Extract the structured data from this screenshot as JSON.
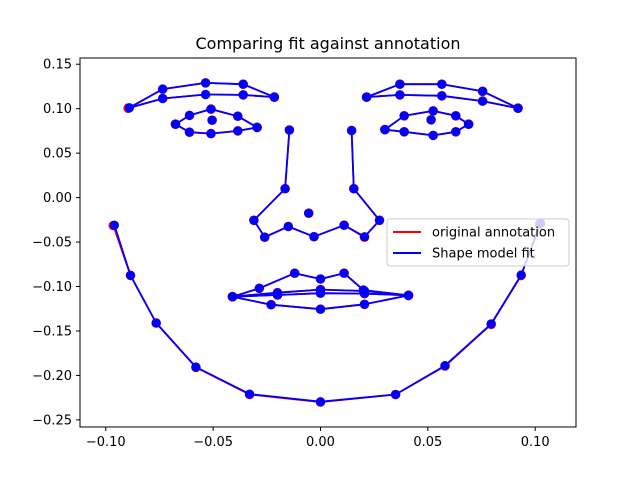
{
  "chart_data": {
    "type": "scatter",
    "title": "Comparing fit against annotation",
    "xlabel": "",
    "ylabel": "",
    "xlim": [
      -0.112,
      0.119
    ],
    "ylim": [
      -0.258,
      0.157
    ],
    "x_ticks": [
      -0.1,
      -0.05,
      0.0,
      0.05,
      0.1
    ],
    "x_tick_labels": [
      "−0.10",
      "−0.05",
      "0.00",
      "0.05",
      "0.10"
    ],
    "y_ticks": [
      -0.25,
      -0.2,
      -0.15,
      -0.1,
      -0.05,
      0.0,
      0.05,
      0.1,
      0.15
    ],
    "y_tick_labels": [
      "−0.25",
      "−0.20",
      "−0.15",
      "−0.10",
      "−0.05",
      "0.00",
      "0.05",
      "0.10",
      "0.15"
    ],
    "grid": false,
    "legend": {
      "placement": "center-right",
      "entries": [
        {
          "label": "original annotation",
          "color": "#ff0000"
        },
        {
          "label": "Shape model fit",
          "color": "#0000ff"
        }
      ]
    },
    "colors": {
      "annotation": "#ff0000",
      "fit": "#0000ff",
      "marker_overlap": "#2222ff"
    },
    "series": [
      {
        "name": "original annotation",
        "paths": [
          [
            [
              -0.0965,
              -0.0315
            ],
            [
              -0.0885,
              -0.0875
            ],
            [
              -0.0765,
              -0.141
            ],
            [
              -0.058,
              -0.191
            ],
            [
              -0.033,
              -0.2215
            ],
            [
              0.0,
              -0.23
            ],
            [
              0.035,
              -0.2215
            ],
            [
              0.058,
              -0.1895
            ],
            [
              0.0795,
              -0.1425
            ],
            [
              0.0935,
              -0.0875
            ],
            [
              0.102,
              -0.03
            ]
          ],
          [
            [
              -0.0895,
              0.1005
            ],
            [
              -0.0735,
              0.122
            ],
            [
              -0.0535,
              0.129
            ],
            [
              -0.036,
              0.1275
            ],
            [
              -0.0215,
              0.113
            ]
          ],
          [
            [
              -0.0895,
              0.1005
            ],
            [
              -0.0735,
              0.1115
            ],
            [
              -0.0535,
              0.116
            ],
            [
              -0.036,
              0.1155
            ],
            [
              -0.0215,
              0.113
            ]
          ],
          [
            [
              0.0215,
              0.113
            ],
            [
              0.037,
              0.1275
            ],
            [
              0.0565,
              0.1275
            ],
            [
              0.0755,
              0.1195
            ],
            [
              0.092,
              0.1005
            ]
          ],
          [
            [
              0.0215,
              0.113
            ],
            [
              0.037,
              0.1155
            ],
            [
              0.0565,
              0.1145
            ],
            [
              0.0755,
              0.1085
            ],
            [
              0.092,
              0.1005
            ]
          ],
          [
            [
              -0.0675,
              0.0825
            ],
            [
              -0.061,
              0.0925
            ],
            [
              -0.051,
              0.0995
            ],
            [
              -0.0385,
              0.0915
            ],
            [
              -0.0295,
              0.079
            ]
          ],
          [
            [
              -0.0675,
              0.0825
            ],
            [
              -0.061,
              0.0735
            ],
            [
              -0.051,
              0.072
            ],
            [
              -0.0385,
              0.075
            ],
            [
              -0.0295,
              0.079
            ]
          ],
          [
            [
              0.03,
              0.0765
            ],
            [
              0.039,
              0.092
            ],
            [
              0.0525,
              0.0975
            ],
            [
              0.063,
              0.092
            ],
            [
              0.069,
              0.0825
            ]
          ],
          [
            [
              0.03,
              0.0765
            ],
            [
              0.039,
              0.074
            ],
            [
              0.0525,
              0.07
            ],
            [
              0.063,
              0.074
            ],
            [
              0.069,
              0.0825
            ]
          ],
          [
            [
              -0.0145,
              0.076
            ],
            [
              -0.0165,
              0.01
            ],
            [
              -0.031,
              -0.0255
            ],
            [
              -0.026,
              -0.0445
            ],
            [
              -0.015,
              -0.0325
            ],
            [
              -0.003,
              -0.044
            ],
            [
              0.011,
              -0.031
            ],
            [
              0.0205,
              -0.0445
            ],
            [
              0.0275,
              -0.0255
            ],
            [
              0.0155,
              0.01
            ],
            [
              0.0145,
              0.0755
            ]
          ],
          [
            [
              -0.041,
              -0.1115
            ],
            [
              -0.0285,
              -0.102
            ],
            [
              -0.012,
              -0.085
            ],
            [
              0.0,
              -0.0915
            ],
            [
              0.011,
              -0.085
            ],
            [
              0.02,
              -0.104
            ],
            [
              0.041,
              -0.11
            ]
          ],
          [
            [
              -0.041,
              -0.1115
            ],
            [
              -0.023,
              -0.1205
            ],
            [
              0.0,
              -0.1255
            ],
            [
              0.0205,
              -0.12
            ],
            [
              0.041,
              -0.11
            ]
          ],
          [
            [
              -0.041,
              -0.1115
            ],
            [
              -0.02,
              -0.107
            ],
            [
              0.0,
              -0.1035
            ],
            [
              0.0205,
              -0.105
            ],
            [
              0.041,
              -0.11
            ]
          ],
          [
            [
              -0.041,
              -0.1115
            ],
            [
              -0.02,
              -0.1095
            ],
            [
              0.0,
              -0.1075
            ],
            [
              0.0205,
              -0.108
            ],
            [
              0.041,
              -0.11
            ]
          ]
        ],
        "points": [
          [
            -0.0055,
            -0.0175
          ],
          [
            -0.0505,
            0.087
          ],
          [
            0.0515,
            0.0875
          ]
        ]
      },
      {
        "name": "Shape model fit",
        "paths": [
          [
            [
              -0.096,
              -0.031
            ],
            [
              -0.0885,
              -0.0875
            ],
            [
              -0.0765,
              -0.141
            ],
            [
              -0.058,
              -0.1905
            ],
            [
              -0.033,
              -0.221
            ],
            [
              0.0,
              -0.2295
            ],
            [
              0.035,
              -0.2215
            ],
            [
              0.058,
              -0.189
            ],
            [
              0.0795,
              -0.142
            ],
            [
              0.0935,
              -0.087
            ],
            [
              0.1025,
              -0.029
            ]
          ],
          [
            [
              -0.089,
              0.101
            ],
            [
              -0.0735,
              0.122
            ],
            [
              -0.0535,
              0.129
            ],
            [
              -0.036,
              0.1275
            ],
            [
              -0.0215,
              0.113
            ]
          ],
          [
            [
              -0.089,
              0.101
            ],
            [
              -0.0735,
              0.1115
            ],
            [
              -0.0535,
              0.116
            ],
            [
              -0.036,
              0.1155
            ],
            [
              -0.0215,
              0.113
            ]
          ],
          [
            [
              0.0215,
              0.113
            ],
            [
              0.037,
              0.1275
            ],
            [
              0.0565,
              0.1275
            ],
            [
              0.0755,
              0.1195
            ],
            [
              0.092,
              0.1005
            ]
          ],
          [
            [
              0.0215,
              0.113
            ],
            [
              0.037,
              0.1155
            ],
            [
              0.0565,
              0.1145
            ],
            [
              0.0755,
              0.1085
            ],
            [
              0.092,
              0.1005
            ]
          ],
          [
            [
              -0.0675,
              0.0825
            ],
            [
              -0.061,
              0.0925
            ],
            [
              -0.051,
              0.0995
            ],
            [
              -0.0385,
              0.0915
            ],
            [
              -0.0295,
              0.079
            ]
          ],
          [
            [
              -0.0675,
              0.0825
            ],
            [
              -0.061,
              0.0735
            ],
            [
              -0.051,
              0.072
            ],
            [
              -0.0385,
              0.075
            ],
            [
              -0.0295,
              0.079
            ]
          ],
          [
            [
              0.03,
              0.0765
            ],
            [
              0.039,
              0.092
            ],
            [
              0.0525,
              0.0975
            ],
            [
              0.063,
              0.092
            ],
            [
              0.069,
              0.0825
            ]
          ],
          [
            [
              0.03,
              0.0765
            ],
            [
              0.039,
              0.074
            ],
            [
              0.0525,
              0.07
            ],
            [
              0.063,
              0.074
            ],
            [
              0.069,
              0.0825
            ]
          ],
          [
            [
              -0.0145,
              0.076
            ],
            [
              -0.0165,
              0.01
            ],
            [
              -0.031,
              -0.0255
            ],
            [
              -0.026,
              -0.0445
            ],
            [
              -0.015,
              -0.0325
            ],
            [
              -0.003,
              -0.044
            ],
            [
              0.011,
              -0.031
            ],
            [
              0.0205,
              -0.044
            ],
            [
              0.0275,
              -0.0255
            ],
            [
              0.0155,
              0.01
            ],
            [
              0.0145,
              0.0755
            ]
          ],
          [
            [
              -0.041,
              -0.1115
            ],
            [
              -0.0285,
              -0.102
            ],
            [
              -0.012,
              -0.085
            ],
            [
              0.0,
              -0.0915
            ],
            [
              0.011,
              -0.085
            ],
            [
              0.02,
              -0.104
            ],
            [
              0.041,
              -0.11
            ]
          ],
          [
            [
              -0.041,
              -0.1115
            ],
            [
              -0.023,
              -0.1205
            ],
            [
              0.0,
              -0.1255
            ],
            [
              0.0205,
              -0.12
            ],
            [
              0.041,
              -0.11
            ]
          ],
          [
            [
              -0.041,
              -0.1115
            ],
            [
              -0.02,
              -0.107
            ],
            [
              0.0,
              -0.1035
            ],
            [
              0.0205,
              -0.105
            ],
            [
              0.041,
              -0.11
            ]
          ],
          [
            [
              -0.041,
              -0.1115
            ],
            [
              -0.02,
              -0.1095
            ],
            [
              0.0,
              -0.1075
            ],
            [
              0.0205,
              -0.108
            ],
            [
              0.041,
              -0.11
            ]
          ]
        ],
        "points": [
          [
            -0.0055,
            -0.0175
          ],
          [
            -0.0505,
            0.087
          ],
          [
            0.0515,
            0.0875
          ]
        ]
      }
    ]
  }
}
